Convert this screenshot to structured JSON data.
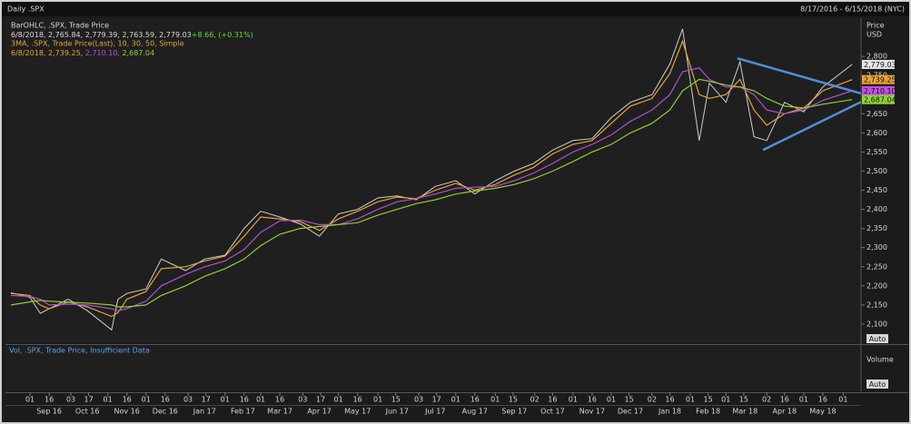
{
  "header": {
    "title": "Daily .SPX",
    "range": "8/17/2016 - 6/15/2018 (NYC)"
  },
  "legend": {
    "bars_name": "BarOHLC, .SPX, Trade Price",
    "bars_values": "6/8/2018, 2,765.84, 2,779.39, 2,763.59, 2,779.03",
    "bars_change": "+8.66, (+0.31%)",
    "ma_name": "3MA, .SPX, Trade Price(Last), 10, 30, 50, Simple",
    "ma_date": "6/8/2018,",
    "ma_10": "2,739.25,",
    "ma_30": "2,710.10,",
    "ma_50": "2,687.04"
  },
  "price_axis": {
    "title": "Price",
    "unit": "USD",
    "auto": "Auto"
  },
  "volume_pane": {
    "text": "Vol, .SPX, Trade Price, Insufficient Data",
    "title": "Volume",
    "auto": "Auto"
  },
  "chart_data": {
    "type": "line",
    "x": [
      "2016-08-17",
      "2016-09-01",
      "2016-09-09",
      "2016-09-16",
      "2016-10-01",
      "2016-10-16",
      "2016-11-04",
      "2016-11-09",
      "2016-11-16",
      "2016-12-01",
      "2016-12-13",
      "2017-01-01",
      "2017-01-16",
      "2017-02-01",
      "2017-02-16",
      "2017-03-01",
      "2017-03-16",
      "2017-04-01",
      "2017-04-16",
      "2017-05-01",
      "2017-05-16",
      "2017-06-01",
      "2017-06-16",
      "2017-07-01",
      "2017-07-16",
      "2017-08-01",
      "2017-08-16",
      "2017-09-01",
      "2017-09-16",
      "2017-10-01",
      "2017-10-16",
      "2017-11-01",
      "2017-11-16",
      "2017-12-01",
      "2017-12-16",
      "2018-01-02",
      "2018-01-16",
      "2018-01-26",
      "2018-02-08",
      "2018-02-16",
      "2018-03-01",
      "2018-03-12",
      "2018-03-23",
      "2018-04-02",
      "2018-04-16",
      "2018-05-01",
      "2018-05-16",
      "2018-06-08"
    ],
    "xlim": [
      "2016-08-17",
      "2018-06-15"
    ],
    "ylim": [
      2050,
      2900
    ],
    "yticks": [
      {
        "value": 2100,
        "label": "2,100"
      },
      {
        "value": 2150,
        "label": "2,150"
      },
      {
        "value": 2200,
        "label": "2,200"
      },
      {
        "value": 2250,
        "label": "2,250"
      },
      {
        "value": 2300,
        "label": "2,300"
      },
      {
        "value": 2350,
        "label": "2,350"
      },
      {
        "value": 2400,
        "label": "2,400"
      },
      {
        "value": 2450,
        "label": "2,450"
      },
      {
        "value": 2500,
        "label": "2,500"
      },
      {
        "value": 2550,
        "label": "2,550"
      },
      {
        "value": 2600,
        "label": "2,600"
      },
      {
        "value": 2650,
        "label": "2,650"
      },
      {
        "value": 2700,
        "label": "2,700"
      },
      {
        "value": 2750,
        "label": "2,750"
      },
      {
        "value": 2800,
        "label": "2,800"
      }
    ],
    "xticks": [
      {
        "value": "2016-09-01",
        "label": "01"
      },
      {
        "value": "2016-09-16",
        "label": "16"
      },
      {
        "value": "2016-10-03",
        "label": "03"
      },
      {
        "value": "2016-10-17",
        "label": "17"
      },
      {
        "value": "2016-11-01",
        "label": "01"
      },
      {
        "value": "2016-11-16",
        "label": "16"
      },
      {
        "value": "2016-12-01",
        "label": "01"
      },
      {
        "value": "2016-12-16",
        "label": "16"
      },
      {
        "value": "2017-01-03",
        "label": "03"
      },
      {
        "value": "2017-01-17",
        "label": "17"
      },
      {
        "value": "2017-02-01",
        "label": "01"
      },
      {
        "value": "2017-02-16",
        "label": "16"
      },
      {
        "value": "2017-03-01",
        "label": "01"
      },
      {
        "value": "2017-03-16",
        "label": "16"
      },
      {
        "value": "2017-04-03",
        "label": "03"
      },
      {
        "value": "2017-04-17",
        "label": "17"
      },
      {
        "value": "2017-05-01",
        "label": "01"
      },
      {
        "value": "2017-05-16",
        "label": "16"
      },
      {
        "value": "2017-06-01",
        "label": "01"
      },
      {
        "value": "2017-06-15",
        "label": "15"
      },
      {
        "value": "2017-07-03",
        "label": "03"
      },
      {
        "value": "2017-07-17",
        "label": "17"
      },
      {
        "value": "2017-08-01",
        "label": "01"
      },
      {
        "value": "2017-08-16",
        "label": "16"
      },
      {
        "value": "2017-09-01",
        "label": "01"
      },
      {
        "value": "2017-09-15",
        "label": "15"
      },
      {
        "value": "2017-10-02",
        "label": "02"
      },
      {
        "value": "2017-10-16",
        "label": "16"
      },
      {
        "value": "2017-11-01",
        "label": "01"
      },
      {
        "value": "2017-11-16",
        "label": "16"
      },
      {
        "value": "2017-12-01",
        "label": "01"
      },
      {
        "value": "2017-12-15",
        "label": "15"
      },
      {
        "value": "2018-01-02",
        "label": "02"
      },
      {
        "value": "2018-01-16",
        "label": "16"
      },
      {
        "value": "2018-02-01",
        "label": "01"
      },
      {
        "value": "2018-02-15",
        "label": "15"
      },
      {
        "value": "2018-03-01",
        "label": "01"
      },
      {
        "value": "2018-03-15",
        "label": "15"
      },
      {
        "value": "2018-04-02",
        "label": "02"
      },
      {
        "value": "2018-04-16",
        "label": "16"
      },
      {
        "value": "2018-05-01",
        "label": "01"
      },
      {
        "value": "2018-05-16",
        "label": "16"
      },
      {
        "value": "2018-06-01",
        "label": "01"
      }
    ],
    "month_labels": [
      {
        "value": "2016-09-16",
        "label": "Sep 16"
      },
      {
        "value": "2016-10-16",
        "label": "Oct 16"
      },
      {
        "value": "2016-11-16",
        "label": "Nov 16"
      },
      {
        "value": "2016-12-16",
        "label": "Dec 16"
      },
      {
        "value": "2017-01-16",
        "label": "Jan 17"
      },
      {
        "value": "2017-02-15",
        "label": "Feb 17"
      },
      {
        "value": "2017-03-16",
        "label": "Mar 17"
      },
      {
        "value": "2017-04-16",
        "label": "Apr 17"
      },
      {
        "value": "2017-05-16",
        "label": "May 17"
      },
      {
        "value": "2017-06-16",
        "label": "Jun 17"
      },
      {
        "value": "2017-07-16",
        "label": "Jul 17"
      },
      {
        "value": "2017-08-16",
        "label": "Aug 17"
      },
      {
        "value": "2017-09-16",
        "label": "Sep 17"
      },
      {
        "value": "2017-10-16",
        "label": "Oct 17"
      },
      {
        "value": "2017-11-16",
        "label": "Nov 17"
      },
      {
        "value": "2017-12-16",
        "label": "Dec 17"
      },
      {
        "value": "2018-01-16",
        "label": "Jan 18"
      },
      {
        "value": "2018-02-15",
        "label": "Feb 18"
      },
      {
        "value": "2018-03-16",
        "label": "Mar 18"
      },
      {
        "value": "2018-04-16",
        "label": "Apr 18"
      },
      {
        "value": "2018-05-16",
        "label": "May 18"
      }
    ],
    "series": [
      {
        "name": "BarOHLC",
        "color": "#cfcfcf",
        "badge": "2,779.03",
        "badge_color": "#e6e6e6",
        "values": [
          2182,
          2170,
          2128,
          2140,
          2165,
          2135,
          2085,
          2165,
          2180,
          2192,
          2270,
          2240,
          2270,
          2280,
          2350,
          2395,
          2380,
          2362,
          2330,
          2388,
          2400,
          2430,
          2435,
          2425,
          2460,
          2475,
          2440,
          2475,
          2500,
          2520,
          2555,
          2580,
          2585,
          2640,
          2680,
          2700,
          2780,
          2872,
          2580,
          2730,
          2680,
          2786,
          2590,
          2580,
          2680,
          2655,
          2720,
          2779.03
        ]
      },
      {
        "name": "MA 10",
        "color": "#e8a23a",
        "badge": "2,739.25",
        "badge_color": "#e8a23a",
        "values": [
          2180,
          2175,
          2150,
          2140,
          2158,
          2145,
          2120,
          2130,
          2165,
          2185,
          2245,
          2250,
          2265,
          2278,
          2330,
          2380,
          2375,
          2368,
          2345,
          2375,
          2395,
          2420,
          2432,
          2428,
          2450,
          2468,
          2450,
          2465,
          2490,
          2510,
          2545,
          2570,
          2580,
          2625,
          2670,
          2690,
          2755,
          2840,
          2700,
          2690,
          2700,
          2740,
          2660,
          2620,
          2650,
          2665,
          2710,
          2739.25
        ]
      },
      {
        "name": "MA 30",
        "color": "#b04fd0",
        "badge": "2,710.10",
        "badge_color": "#c050e0",
        "values": [
          2175,
          2172,
          2165,
          2150,
          2152,
          2150,
          2140,
          2135,
          2140,
          2160,
          2200,
          2230,
          2250,
          2265,
          2295,
          2340,
          2370,
          2372,
          2360,
          2360,
          2375,
          2400,
          2420,
          2428,
          2440,
          2455,
          2458,
          2460,
          2475,
          2495,
          2520,
          2550,
          2570,
          2595,
          2630,
          2660,
          2700,
          2760,
          2770,
          2740,
          2720,
          2720,
          2700,
          2660,
          2650,
          2660,
          2685,
          2710.1
        ]
      },
      {
        "name": "MA 50",
        "color": "#8fcf3a",
        "badge": "2,687.04",
        "badge_color": "#8fd53a",
        "values": [
          2150,
          2158,
          2162,
          2160,
          2157,
          2155,
          2150,
          2145,
          2145,
          2150,
          2175,
          2200,
          2225,
          2245,
          2270,
          2305,
          2335,
          2350,
          2355,
          2360,
          2365,
          2385,
          2400,
          2415,
          2425,
          2440,
          2448,
          2455,
          2465,
          2480,
          2500,
          2525,
          2550,
          2570,
          2600,
          2625,
          2660,
          2710,
          2740,
          2735,
          2725,
          2720,
          2710,
          2690,
          2670,
          2665,
          2675,
          2687.04
        ]
      }
    ],
    "trendlines": [
      {
        "color": "#4f8fd6",
        "x": [
          "2018-03-10",
          "2018-06-15"
        ],
        "values": [
          2795,
          2703
        ]
      },
      {
        "color": "#4f8fd6",
        "x": [
          "2018-03-30",
          "2018-06-15"
        ],
        "values": [
          2555,
          2681
        ]
      }
    ]
  }
}
